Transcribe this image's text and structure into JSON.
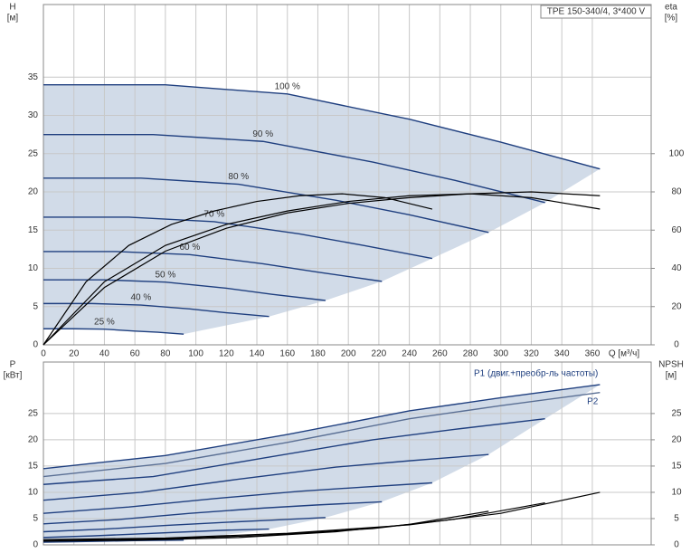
{
  "chart_data": [
    {
      "type": "line",
      "title": "TPE 150-340/4, 3*400 V",
      "ylabel": "H",
      "yunit": "[м]",
      "y2label": "eta",
      "y2unit": "[%]",
      "xlabel": "Q [м³/ч]",
      "xlim": [
        0,
        398.6
      ],
      "ylim": [
        0,
        44.5
      ],
      "y2lim": [
        0,
        178
      ],
      "xticks": [
        0,
        20,
        40,
        60,
        80,
        100,
        120,
        140,
        160,
        180,
        200,
        220,
        240,
        260,
        280,
        300,
        320,
        340,
        360
      ],
      "yticks": [
        0,
        5,
        10,
        15,
        20,
        25,
        30,
        35
      ],
      "y2ticks": [
        0,
        20,
        40,
        60,
        80,
        100
      ],
      "grid": true,
      "series": [
        {
          "name": "100 %",
          "color": "#1f3f7f",
          "x": [
            0,
            80,
            160,
            240,
            300,
            365
          ],
          "values": [
            34,
            34,
            32.8,
            29.5,
            26.5,
            23
          ]
        },
        {
          "name": "90 %",
          "color": "#1f3f7f",
          "x": [
            0,
            72,
            144,
            216,
            270,
            329
          ],
          "values": [
            27.5,
            27.5,
            26.6,
            23.9,
            21.5,
            18.6
          ]
        },
        {
          "name": "80 %",
          "color": "#1f3f7f",
          "x": [
            0,
            64,
            128,
            192,
            240,
            292
          ],
          "values": [
            21.8,
            21.8,
            21,
            18.9,
            17,
            14.7
          ]
        },
        {
          "name": "70 %",
          "color": "#1f3f7f",
          "x": [
            0,
            56,
            112,
            168,
            210,
            255
          ],
          "values": [
            16.7,
            16.7,
            16.1,
            14.5,
            13,
            11.3
          ]
        },
        {
          "name": "60 %",
          "color": "#1f3f7f",
          "x": [
            0,
            48,
            96,
            144,
            180,
            222
          ],
          "values": [
            12.2,
            12.2,
            11.8,
            10.6,
            9.5,
            8.3
          ]
        },
        {
          "name": "50 %",
          "color": "#1f3f7f",
          "x": [
            0,
            40,
            80,
            120,
            150,
            185
          ],
          "values": [
            8.5,
            8.5,
            8.2,
            7.4,
            6.6,
            5.8
          ]
        },
        {
          "name": "40 %",
          "color": "#1f3f7f",
          "x": [
            0,
            32,
            64,
            96,
            120,
            148
          ],
          "values": [
            5.4,
            5.4,
            5.2,
            4.7,
            4.2,
            3.7
          ]
        },
        {
          "name": "25 %",
          "color": "#1f3f7f",
          "x": [
            0,
            20,
            40,
            60,
            75,
            92
          ],
          "values": [
            2.1,
            2.1,
            2.05,
            1.8,
            1.65,
            1.4
          ]
        },
        {
          "color": "#000000",
          "axis": "y2",
          "x": [
            0,
            40,
            80,
            120,
            160,
            200,
            240,
            280,
            320,
            365
          ],
          "values": [
            0,
            33,
            52,
            63,
            70,
            75,
            78,
            79,
            77,
            71
          ]
        },
        {
          "color": "#000000",
          "axis": "y2",
          "x": [
            0,
            28,
            56,
            84,
            112,
            140,
            168,
            196,
            224,
            255
          ],
          "values": [
            0,
            33,
            52,
            63,
            70,
            75,
            78,
            79,
            77,
            71
          ]
        },
        {
          "color": "#000000",
          "axis": "y2",
          "x": [
            0,
            40,
            80,
            120,
            160,
            200,
            240,
            280,
            320,
            365
          ],
          "values": [
            0,
            30,
            49,
            61,
            69,
            74,
            77,
            79,
            80,
            78
          ]
        }
      ]
    },
    {
      "type": "line",
      "ylabel": "P",
      "yunit": "[кВт]",
      "y2label": "NPSH",
      "y2unit": "[м]",
      "xlim": [
        0,
        398.6
      ],
      "ylim": [
        0,
        34.8
      ],
      "y2lim": [
        0,
        34.8
      ],
      "xticks": [
        0,
        20,
        40,
        60,
        80,
        100,
        120,
        140,
        160,
        180,
        200,
        220,
        240,
        260,
        280,
        300,
        320,
        340,
        360
      ],
      "yticks": [
        0,
        5,
        10,
        15,
        20,
        25
      ],
      "y2ticks": [
        0,
        5,
        10,
        15,
        20,
        25
      ],
      "grid": true,
      "series": [
        {
          "name": "P1 (двиг.+преобр-ль частоты)",
          "color": "#1f3f7f",
          "x": [
            0,
            80,
            160,
            240,
            300,
            365
          ],
          "values": [
            14.5,
            17,
            21,
            25.5,
            28,
            30.5
          ]
        },
        {
          "color": "#1f3f7f",
          "x": [
            0,
            72,
            144,
            216,
            270,
            329
          ],
          "values": [
            11.5,
            13,
            16.5,
            20,
            22,
            24
          ]
        },
        {
          "color": "#1f3f7f",
          "x": [
            0,
            64,
            128,
            192,
            240,
            292
          ],
          "values": [
            8.5,
            10,
            12.5,
            14.8,
            16,
            17.2
          ]
        },
        {
          "color": "#1f3f7f",
          "x": [
            0,
            56,
            112,
            168,
            210,
            255
          ],
          "values": [
            6,
            7.2,
            8.8,
            10.2,
            11,
            11.8
          ]
        },
        {
          "color": "#1f3f7f",
          "x": [
            0,
            48,
            96,
            144,
            180,
            222
          ],
          "values": [
            4,
            4.8,
            6,
            7,
            7.6,
            8.2
          ]
        },
        {
          "color": "#1f3f7f",
          "x": [
            0,
            40,
            80,
            120,
            150,
            185
          ],
          "values": [
            2.5,
            3,
            3.7,
            4.3,
            4.7,
            5.2
          ]
        },
        {
          "color": "#1f3f7f",
          "x": [
            0,
            32,
            64,
            96,
            120,
            148
          ],
          "values": [
            1.4,
            1.7,
            2.1,
            2.5,
            2.8,
            3
          ]
        },
        {
          "color": "#1f3f7f",
          "x": [
            0,
            20,
            40,
            60,
            75,
            92
          ],
          "values": [
            0.5,
            0.6,
            0.7,
            0.8,
            0.85,
            0.9
          ]
        },
        {
          "name": "P2",
          "color": "#5a6f94",
          "x": [
            0,
            80,
            160,
            240,
            300,
            365
          ],
          "values": [
            13,
            15.5,
            19.5,
            24,
            26.5,
            29
          ]
        },
        {
          "color": "#000000",
          "axis": "y2",
          "x": [
            0,
            80,
            160,
            240,
            300,
            365
          ],
          "values": [
            1,
            1.3,
            2.2,
            3.8,
            6,
            10
          ]
        },
        {
          "color": "#000000",
          "axis": "y2",
          "x": [
            0,
            72,
            144,
            216,
            270,
            329
          ],
          "values": [
            0.8,
            1.1,
            1.8,
            3.1,
            4.9,
            8
          ]
        },
        {
          "color": "#000000",
          "axis": "y2",
          "x": [
            0,
            64,
            128,
            192,
            240,
            292
          ],
          "values": [
            0.7,
            0.9,
            1.4,
            2.5,
            3.9,
            6.4
          ]
        }
      ]
    }
  ]
}
